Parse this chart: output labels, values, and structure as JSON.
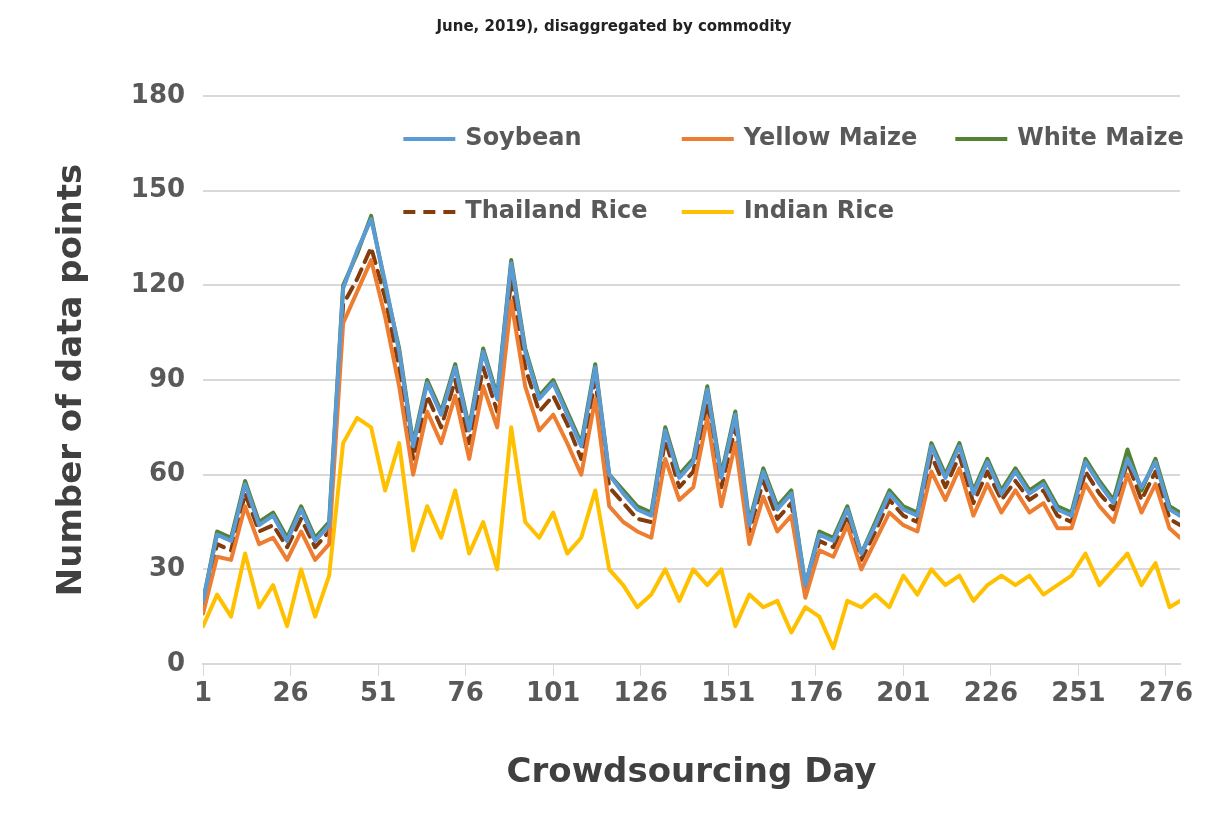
{
  "chart_data": {
    "type": "line",
    "title": "June, 2019), disaggregated by commodity",
    "xlabel": "Crowdsourcing Day",
    "ylabel": "Number of data points",
    "x": [
      1,
      5,
      9,
      13,
      17,
      21,
      25,
      29,
      33,
      37,
      41,
      45,
      49,
      53,
      57,
      61,
      65,
      69,
      73,
      77,
      81,
      85,
      89,
      93,
      97,
      101,
      105,
      109,
      113,
      117,
      121,
      125,
      129,
      133,
      137,
      141,
      145,
      149,
      153,
      157,
      161,
      165,
      169,
      173,
      177,
      181,
      185,
      189,
      193,
      197,
      201,
      205,
      209,
      213,
      217,
      221,
      225,
      229,
      233,
      237,
      241,
      245,
      249,
      253,
      257,
      261,
      265,
      269,
      273,
      277,
      280
    ],
    "xlim": [
      1,
      280
    ],
    "xticks": [
      1,
      26,
      51,
      76,
      101,
      126,
      151,
      176,
      201,
      226,
      251,
      276
    ],
    "ylim": [
      0,
      180
    ],
    "yticks": [
      0,
      30,
      60,
      90,
      120,
      150,
      180
    ],
    "grid": "y",
    "legend": "top right",
    "marker": "none",
    "series": [
      {
        "name": "Soybean",
        "color": "#5b9bd5",
        "line_style": "solid",
        "values": [
          20,
          41,
          39,
          57,
          44,
          47,
          39,
          49,
          39,
          44,
          119,
          131,
          141,
          121,
          99,
          69,
          89,
          79,
          94,
          74,
          99,
          84,
          127,
          99,
          84,
          89,
          79,
          69,
          94,
          60,
          54,
          49,
          47,
          74,
          59,
          64,
          87,
          59,
          79,
          44,
          61,
          49,
          54,
          25,
          41,
          39,
          49,
          35,
          44,
          54,
          49,
          47,
          69,
          59,
          69,
          54,
          64,
          54,
          61,
          54,
          57,
          49,
          47,
          64,
          57,
          51,
          65,
          56,
          64,
          49,
          47
        ]
      },
      {
        "name": "Yellow Maize",
        "color": "#ed7d31",
        "line_style": "solid",
        "values": [
          16,
          34,
          33,
          50,
          38,
          40,
          33,
          42,
          33,
          38,
          108,
          118,
          128,
          110,
          88,
          60,
          80,
          70,
          85,
          65,
          88,
          75,
          115,
          88,
          74,
          79,
          70,
          60,
          84,
          50,
          45,
          42,
          40,
          65,
          52,
          56,
          78,
          50,
          70,
          38,
          53,
          42,
          47,
          21,
          36,
          34,
          44,
          30,
          39,
          48,
          44,
          42,
          61,
          52,
          62,
          47,
          57,
          48,
          55,
          48,
          51,
          43,
          43,
          57,
          50,
          45,
          60,
          48,
          57,
          43,
          40
        ]
      },
      {
        "name": "White Maize",
        "color": "#548235",
        "line_style": "solid",
        "values": [
          20,
          42,
          40,
          58,
          45,
          48,
          40,
          50,
          40,
          45,
          120,
          130,
          142,
          120,
          100,
          70,
          90,
          80,
          95,
          75,
          100,
          85,
          128,
          100,
          85,
          90,
          80,
          70,
          95,
          60,
          55,
          50,
          48,
          75,
          60,
          65,
          88,
          60,
          80,
          45,
          62,
          50,
          55,
          25,
          42,
          40,
          50,
          35,
          45,
          55,
          50,
          48,
          70,
          60,
          70,
          55,
          65,
          55,
          62,
          55,
          58,
          50,
          48,
          65,
          58,
          52,
          68,
          55,
          65,
          50,
          48
        ]
      },
      {
        "name": "Thailand Rice",
        "color": "#843c0c",
        "line_style": "dashed",
        "values": [
          18,
          38,
          36,
          54,
          42,
          44,
          37,
          46,
          37,
          42,
          114,
          122,
          132,
          116,
          94,
          65,
          85,
          75,
          90,
          70,
          94,
          80,
          122,
          94,
          80,
          85,
          76,
          65,
          90,
          56,
          51,
          46,
          45,
          71,
          56,
          61,
          83,
          56,
          75,
          42,
          58,
          46,
          51,
          23,
          39,
          37,
          47,
          33,
          42,
          52,
          47,
          45,
          66,
          56,
          66,
          51,
          61,
          52,
          58,
          52,
          55,
          47,
          45,
          61,
          54,
          49,
          64,
          52,
          61,
          46,
          44
        ]
      },
      {
        "name": "Indian Rice",
        "color": "#ffc000",
        "line_style": "solid",
        "values": [
          12,
          22,
          15,
          35,
          18,
          25,
          12,
          30,
          15,
          28,
          70,
          78,
          75,
          55,
          70,
          36,
          50,
          40,
          55,
          35,
          45,
          30,
          75,
          45,
          40,
          48,
          35,
          40,
          55,
          30,
          25,
          18,
          22,
          30,
          20,
          30,
          25,
          30,
          12,
          22,
          18,
          20,
          10,
          18,
          15,
          5,
          20,
          18,
          22,
          18,
          28,
          22,
          30,
          25,
          28,
          20,
          25,
          28,
          25,
          28,
          22,
          25,
          28,
          35,
          25,
          30,
          35,
          25,
          32,
          18,
          20
        ]
      }
    ]
  }
}
